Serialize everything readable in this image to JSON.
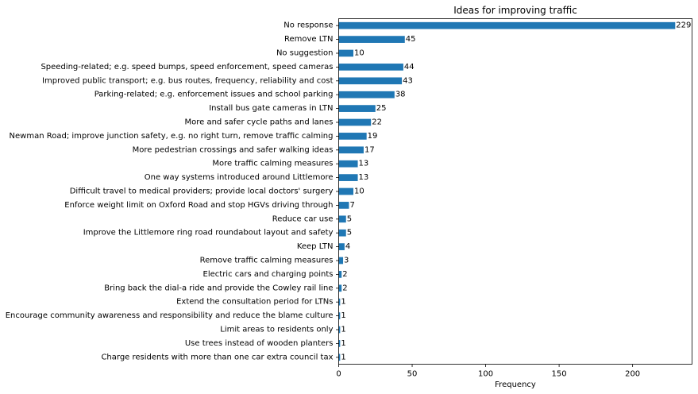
{
  "chart_data": {
    "type": "bar",
    "orientation": "horizontal",
    "title": "Ideas for improving traffic",
    "xlabel": "Frequency",
    "ylabel": "",
    "xlim": [
      0,
      240.45
    ],
    "xticks": [
      0,
      50,
      100,
      150,
      200
    ],
    "grid": false,
    "bar_color": "#1f77b4",
    "categories": [
      "No response",
      "Remove LTN",
      "No suggestion",
      "Speeding-related; e.g. speed bumps, speed enforcement, speed cameras",
      "Improved public transport; e.g. bus routes, frequency, reliability and cost",
      "Parking-related; e.g. enforcement issues and school parking",
      "Install bus gate cameras in LTN",
      "More and safer cycle paths and lanes",
      "Newman Road; improve junction safety, e.g. no right turn, remove traffic calming",
      "More pedestrian crossings and safer walking ideas",
      "More traffic calming measures",
      "One way systems introduced around Littlemore",
      "Difficult travel to medical providers; provide local doctors' surgery",
      "Enforce weight limit on Oxford Road and stop HGVs driving through",
      "Reduce car use",
      "Improve the Littlemore ring road roundabout layout and safety",
      "Keep LTN",
      "Remove traffic calming measures",
      "Electric cars and charging points",
      "Bring back the dial-a ride and provide the Cowley rail line",
      "Extend the consultation period for LTNs",
      "Encourage community awareness and responsibility and reduce the blame culture",
      "Limit areas to residents only",
      "Use trees instead of wooden planters",
      "Charge residents with more than one car extra council tax"
    ],
    "values": [
      229,
      45,
      10,
      44,
      43,
      38,
      25,
      22,
      19,
      17,
      13,
      13,
      10,
      7,
      5,
      5,
      4,
      3,
      2,
      2,
      1,
      1,
      1,
      1,
      1
    ]
  }
}
